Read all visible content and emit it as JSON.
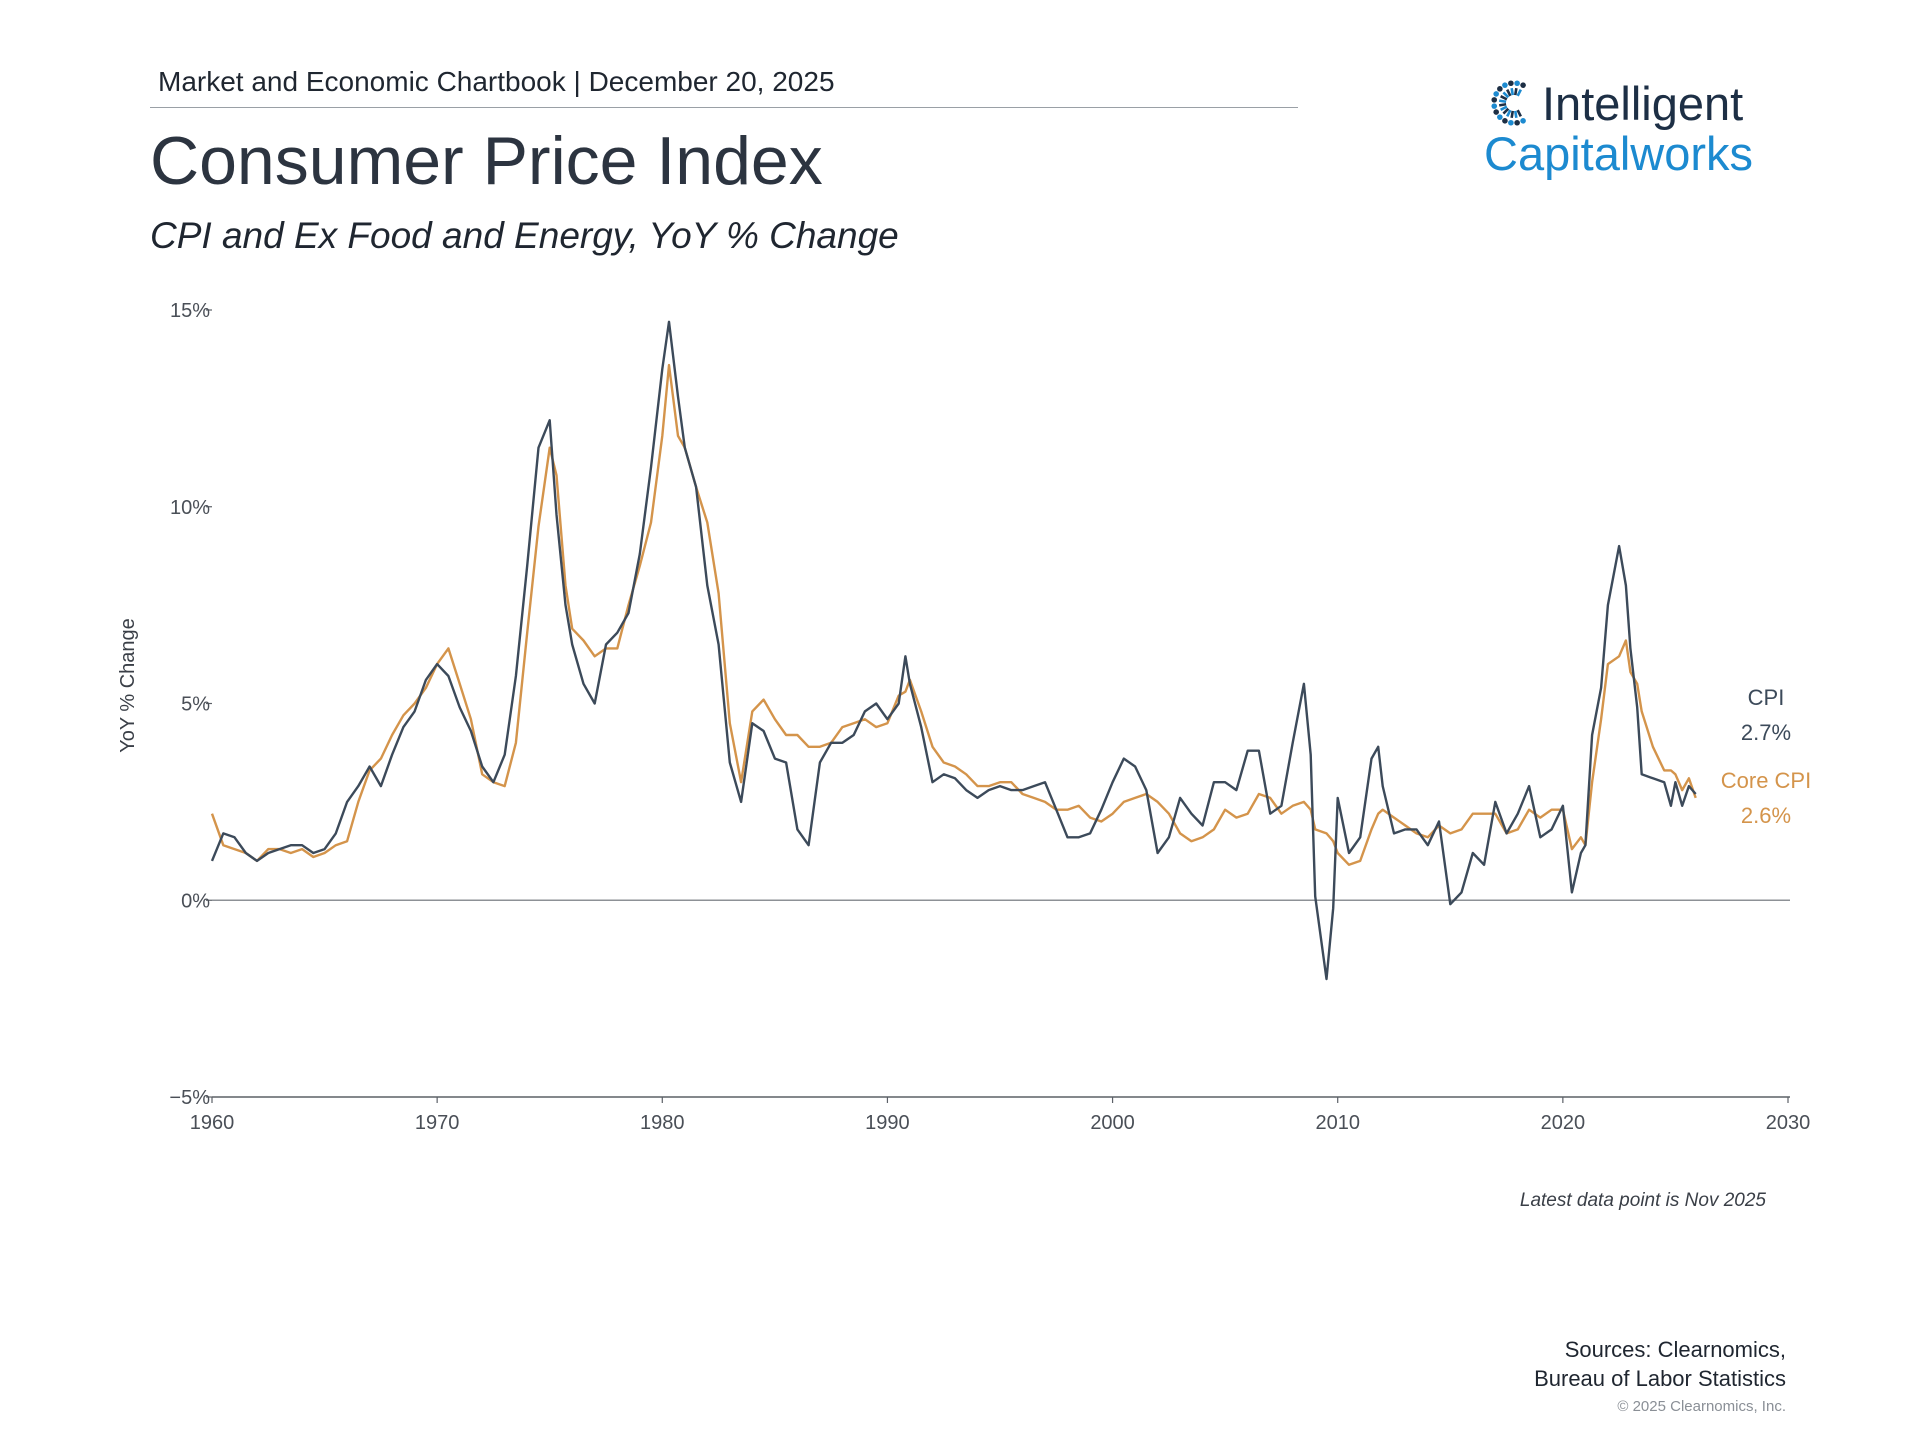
{
  "header": {
    "line": "Market and Economic Chartbook | December 20, 2025",
    "title": "Consumer Price Index",
    "subtitle": "CPI and Ex Food and Energy, YoY % Change"
  },
  "logo": {
    "line1": "Intelligent",
    "line2": "Capitalworks",
    "colors": {
      "dark": "#1d2f45",
      "blue": "#1c8ad0"
    }
  },
  "chart_data": {
    "type": "line",
    "ylabel": "YoY % Change",
    "ylim": [
      -5,
      15
    ],
    "xlim": [
      1960,
      2030
    ],
    "y_ticks": [
      "15%",
      "10%",
      "5%",
      "0%",
      "−5%"
    ],
    "y_tick_values": [
      15,
      10,
      5,
      0,
      -5
    ],
    "x_ticks": [
      "1960",
      "1970",
      "1980",
      "1990",
      "2000",
      "2010",
      "2020",
      "2030"
    ],
    "x_tick_values": [
      1960,
      1970,
      1980,
      1990,
      2000,
      2010,
      2020,
      2030
    ],
    "zero_line": true,
    "grid": false,
    "series": [
      {
        "name": "CPI",
        "end_label": "2.7%",
        "color": "#3c4a5a",
        "points": [
          [
            1960.0,
            1.0
          ],
          [
            1960.5,
            1.7
          ],
          [
            1961.0,
            1.6
          ],
          [
            1961.5,
            1.2
          ],
          [
            1962.0,
            1.0
          ],
          [
            1962.5,
            1.2
          ],
          [
            1963.0,
            1.3
          ],
          [
            1963.5,
            1.4
          ],
          [
            1964.0,
            1.4
          ],
          [
            1964.5,
            1.2
          ],
          [
            1965.0,
            1.3
          ],
          [
            1965.5,
            1.7
          ],
          [
            1966.0,
            2.5
          ],
          [
            1966.5,
            2.9
          ],
          [
            1967.0,
            3.4
          ],
          [
            1967.5,
            2.9
          ],
          [
            1968.0,
            3.7
          ],
          [
            1968.5,
            4.4
          ],
          [
            1969.0,
            4.8
          ],
          [
            1969.5,
            5.6
          ],
          [
            1970.0,
            6.0
          ],
          [
            1970.5,
            5.7
          ],
          [
            1971.0,
            4.9
          ],
          [
            1971.5,
            4.3
          ],
          [
            1972.0,
            3.4
          ],
          [
            1972.5,
            3.0
          ],
          [
            1973.0,
            3.7
          ],
          [
            1973.5,
            5.7
          ],
          [
            1974.0,
            8.5
          ],
          [
            1974.5,
            11.5
          ],
          [
            1975.0,
            12.2
          ],
          [
            1975.3,
            9.8
          ],
          [
            1975.7,
            7.5
          ],
          [
            1976.0,
            6.5
          ],
          [
            1976.5,
            5.5
          ],
          [
            1977.0,
            5.0
          ],
          [
            1977.5,
            6.5
          ],
          [
            1978.0,
            6.8
          ],
          [
            1978.5,
            7.3
          ],
          [
            1979.0,
            8.8
          ],
          [
            1979.5,
            11.0
          ],
          [
            1980.0,
            13.5
          ],
          [
            1980.3,
            14.7
          ],
          [
            1980.7,
            12.8
          ],
          [
            1981.0,
            11.5
          ],
          [
            1981.5,
            10.5
          ],
          [
            1982.0,
            8.0
          ],
          [
            1982.5,
            6.5
          ],
          [
            1983.0,
            3.5
          ],
          [
            1983.5,
            2.5
          ],
          [
            1984.0,
            4.5
          ],
          [
            1984.5,
            4.3
          ],
          [
            1985.0,
            3.6
          ],
          [
            1985.5,
            3.5
          ],
          [
            1986.0,
            1.8
          ],
          [
            1986.5,
            1.4
          ],
          [
            1987.0,
            3.5
          ],
          [
            1987.5,
            4.0
          ],
          [
            1988.0,
            4.0
          ],
          [
            1988.5,
            4.2
          ],
          [
            1989.0,
            4.8
          ],
          [
            1989.5,
            5.0
          ],
          [
            1990.0,
            4.6
          ],
          [
            1990.5,
            5.0
          ],
          [
            1990.8,
            6.2
          ],
          [
            1991.0,
            5.5
          ],
          [
            1991.5,
            4.4
          ],
          [
            1992.0,
            3.0
          ],
          [
            1992.5,
            3.2
          ],
          [
            1993.0,
            3.1
          ],
          [
            1993.5,
            2.8
          ],
          [
            1994.0,
            2.6
          ],
          [
            1994.5,
            2.8
          ],
          [
            1995.0,
            2.9
          ],
          [
            1995.5,
            2.8
          ],
          [
            1996.0,
            2.8
          ],
          [
            1996.5,
            2.9
          ],
          [
            1997.0,
            3.0
          ],
          [
            1997.5,
            2.3
          ],
          [
            1998.0,
            1.6
          ],
          [
            1998.5,
            1.6
          ],
          [
            1999.0,
            1.7
          ],
          [
            1999.5,
            2.3
          ],
          [
            2000.0,
            3.0
          ],
          [
            2000.5,
            3.6
          ],
          [
            2001.0,
            3.4
          ],
          [
            2001.5,
            2.8
          ],
          [
            2002.0,
            1.2
          ],
          [
            2002.5,
            1.6
          ],
          [
            2003.0,
            2.6
          ],
          [
            2003.5,
            2.2
          ],
          [
            2004.0,
            1.9
          ],
          [
            2004.5,
            3.0
          ],
          [
            2005.0,
            3.0
          ],
          [
            2005.5,
            2.8
          ],
          [
            2006.0,
            3.8
          ],
          [
            2006.5,
            3.8
          ],
          [
            2007.0,
            2.2
          ],
          [
            2007.5,
            2.4
          ],
          [
            2008.0,
            4.0
          ],
          [
            2008.5,
            5.5
          ],
          [
            2008.8,
            3.7
          ],
          [
            2009.0,
            0.1
          ],
          [
            2009.5,
            -2.0
          ],
          [
            2009.8,
            -0.2
          ],
          [
            2010.0,
            2.6
          ],
          [
            2010.5,
            1.2
          ],
          [
            2011.0,
            1.6
          ],
          [
            2011.5,
            3.6
          ],
          [
            2011.8,
            3.9
          ],
          [
            2012.0,
            2.9
          ],
          [
            2012.5,
            1.7
          ],
          [
            2013.0,
            1.8
          ],
          [
            2013.5,
            1.8
          ],
          [
            2014.0,
            1.4
          ],
          [
            2014.5,
            2.0
          ],
          [
            2015.0,
            -0.1
          ],
          [
            2015.5,
            0.2
          ],
          [
            2016.0,
            1.2
          ],
          [
            2016.5,
            0.9
          ],
          [
            2017.0,
            2.5
          ],
          [
            2017.5,
            1.7
          ],
          [
            2018.0,
            2.2
          ],
          [
            2018.5,
            2.9
          ],
          [
            2019.0,
            1.6
          ],
          [
            2019.5,
            1.8
          ],
          [
            2020.0,
            2.4
          ],
          [
            2020.4,
            0.2
          ],
          [
            2020.8,
            1.2
          ],
          [
            2021.0,
            1.4
          ],
          [
            2021.3,
            4.2
          ],
          [
            2021.7,
            5.4
          ],
          [
            2022.0,
            7.5
          ],
          [
            2022.5,
            9.0
          ],
          [
            2022.8,
            8.0
          ],
          [
            2023.0,
            6.4
          ],
          [
            2023.3,
            4.9
          ],
          [
            2023.5,
            3.2
          ],
          [
            2024.0,
            3.1
          ],
          [
            2024.5,
            3.0
          ],
          [
            2024.8,
            2.4
          ],
          [
            2025.0,
            3.0
          ],
          [
            2025.3,
            2.4
          ],
          [
            2025.6,
            2.9
          ],
          [
            2025.9,
            2.7
          ]
        ]
      },
      {
        "name": "Core CPI",
        "end_label": "2.6%",
        "color": "#d4944b",
        "points": [
          [
            1960.0,
            2.2
          ],
          [
            1960.5,
            1.4
          ],
          [
            1961.0,
            1.3
          ],
          [
            1961.5,
            1.2
          ],
          [
            1962.0,
            1.0
          ],
          [
            1962.5,
            1.3
          ],
          [
            1963.0,
            1.3
          ],
          [
            1963.5,
            1.2
          ],
          [
            1964.0,
            1.3
          ],
          [
            1964.5,
            1.1
          ],
          [
            1965.0,
            1.2
          ],
          [
            1965.5,
            1.4
          ],
          [
            1966.0,
            1.5
          ],
          [
            1966.5,
            2.5
          ],
          [
            1967.0,
            3.3
          ],
          [
            1967.5,
            3.6
          ],
          [
            1968.0,
            4.2
          ],
          [
            1968.5,
            4.7
          ],
          [
            1969.0,
            5.0
          ],
          [
            1969.5,
            5.4
          ],
          [
            1970.0,
            6.0
          ],
          [
            1970.5,
            6.4
          ],
          [
            1971.0,
            5.5
          ],
          [
            1971.5,
            4.6
          ],
          [
            1972.0,
            3.2
          ],
          [
            1972.5,
            3.0
          ],
          [
            1973.0,
            2.9
          ],
          [
            1973.5,
            4.0
          ],
          [
            1974.0,
            6.8
          ],
          [
            1974.5,
            9.5
          ],
          [
            1975.0,
            11.5
          ],
          [
            1975.3,
            10.8
          ],
          [
            1975.7,
            8.0
          ],
          [
            1976.0,
            6.9
          ],
          [
            1976.5,
            6.6
          ],
          [
            1977.0,
            6.2
          ],
          [
            1977.5,
            6.4
          ],
          [
            1978.0,
            6.4
          ],
          [
            1978.5,
            7.5
          ],
          [
            1979.0,
            8.5
          ],
          [
            1979.5,
            9.6
          ],
          [
            1980.0,
            11.8
          ],
          [
            1980.3,
            13.6
          ],
          [
            1980.7,
            11.8
          ],
          [
            1981.0,
            11.5
          ],
          [
            1981.5,
            10.5
          ],
          [
            1982.0,
            9.6
          ],
          [
            1982.5,
            7.8
          ],
          [
            1983.0,
            4.5
          ],
          [
            1983.5,
            3.0
          ],
          [
            1984.0,
            4.8
          ],
          [
            1984.5,
            5.1
          ],
          [
            1985.0,
            4.6
          ],
          [
            1985.5,
            4.2
          ],
          [
            1986.0,
            4.2
          ],
          [
            1986.5,
            3.9
          ],
          [
            1987.0,
            3.9
          ],
          [
            1987.5,
            4.0
          ],
          [
            1988.0,
            4.4
          ],
          [
            1988.5,
            4.5
          ],
          [
            1989.0,
            4.6
          ],
          [
            1989.5,
            4.4
          ],
          [
            1990.0,
            4.5
          ],
          [
            1990.5,
            5.2
          ],
          [
            1990.8,
            5.3
          ],
          [
            1991.0,
            5.6
          ],
          [
            1991.5,
            4.8
          ],
          [
            1992.0,
            3.9
          ],
          [
            1992.5,
            3.5
          ],
          [
            1993.0,
            3.4
          ],
          [
            1993.5,
            3.2
          ],
          [
            1994.0,
            2.9
          ],
          [
            1994.5,
            2.9
          ],
          [
            1995.0,
            3.0
          ],
          [
            1995.5,
            3.0
          ],
          [
            1996.0,
            2.7
          ],
          [
            1996.5,
            2.6
          ],
          [
            1997.0,
            2.5
          ],
          [
            1997.5,
            2.3
          ],
          [
            1998.0,
            2.3
          ],
          [
            1998.5,
            2.4
          ],
          [
            1999.0,
            2.1
          ],
          [
            1999.5,
            2.0
          ],
          [
            2000.0,
            2.2
          ],
          [
            2000.5,
            2.5
          ],
          [
            2001.0,
            2.6
          ],
          [
            2001.5,
            2.7
          ],
          [
            2002.0,
            2.5
          ],
          [
            2002.5,
            2.2
          ],
          [
            2003.0,
            1.7
          ],
          [
            2003.5,
            1.5
          ],
          [
            2004.0,
            1.6
          ],
          [
            2004.5,
            1.8
          ],
          [
            2005.0,
            2.3
          ],
          [
            2005.5,
            2.1
          ],
          [
            2006.0,
            2.2
          ],
          [
            2006.5,
            2.7
          ],
          [
            2007.0,
            2.6
          ],
          [
            2007.5,
            2.2
          ],
          [
            2008.0,
            2.4
          ],
          [
            2008.5,
            2.5
          ],
          [
            2008.8,
            2.3
          ],
          [
            2009.0,
            1.8
          ],
          [
            2009.5,
            1.7
          ],
          [
            2009.8,
            1.5
          ],
          [
            2010.0,
            1.2
          ],
          [
            2010.5,
            0.9
          ],
          [
            2011.0,
            1.0
          ],
          [
            2011.5,
            1.8
          ],
          [
            2011.8,
            2.2
          ],
          [
            2012.0,
            2.3
          ],
          [
            2012.5,
            2.1
          ],
          [
            2013.0,
            1.9
          ],
          [
            2013.5,
            1.7
          ],
          [
            2014.0,
            1.6
          ],
          [
            2014.5,
            1.9
          ],
          [
            2015.0,
            1.7
          ],
          [
            2015.5,
            1.8
          ],
          [
            2016.0,
            2.2
          ],
          [
            2016.5,
            2.2
          ],
          [
            2017.0,
            2.2
          ],
          [
            2017.5,
            1.7
          ],
          [
            2018.0,
            1.8
          ],
          [
            2018.5,
            2.3
          ],
          [
            2019.0,
            2.1
          ],
          [
            2019.5,
            2.3
          ],
          [
            2020.0,
            2.3
          ],
          [
            2020.4,
            1.3
          ],
          [
            2020.8,
            1.6
          ],
          [
            2021.0,
            1.4
          ],
          [
            2021.3,
            3.0
          ],
          [
            2021.7,
            4.6
          ],
          [
            2022.0,
            6.0
          ],
          [
            2022.5,
            6.2
          ],
          [
            2022.8,
            6.6
          ],
          [
            2023.0,
            5.8
          ],
          [
            2023.3,
            5.5
          ],
          [
            2023.5,
            4.8
          ],
          [
            2024.0,
            3.9
          ],
          [
            2024.5,
            3.3
          ],
          [
            2024.8,
            3.3
          ],
          [
            2025.0,
            3.2
          ],
          [
            2025.3,
            2.8
          ],
          [
            2025.6,
            3.1
          ],
          [
            2025.9,
            2.6
          ]
        ]
      }
    ]
  },
  "note": "Latest data point is Nov 2025",
  "sources": {
    "line1": "Sources: Clearnomics,",
    "line2": "Bureau of Labor Statistics"
  },
  "copyright": "© 2025 Clearnomics, Inc."
}
